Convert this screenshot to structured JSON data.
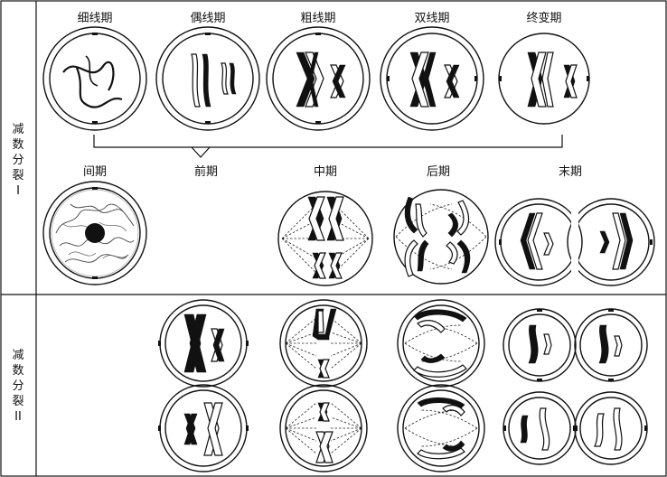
{
  "stage_labels_meiosis1_top": [
    "细线期",
    "偶线期",
    "粗线期",
    "双线期",
    "终变期"
  ],
  "stage_labels_meiosis1_bottom": [
    "间期",
    "前期",
    "中期",
    "后期",
    "末期"
  ],
  "row_labels": {
    "meiosis1": [
      "减",
      "数",
      "分",
      "裂",
      "I"
    ],
    "meiosis2": [
      "减",
      "数",
      "分",
      "裂",
      "II"
    ]
  }
}
